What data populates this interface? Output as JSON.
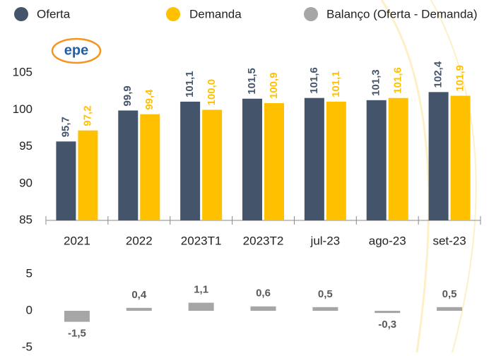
{
  "logo": "epe",
  "chart_data": [
    {
      "type": "bar",
      "categories": [
        "2021",
        "2022",
        "2023T1",
        "2023T2",
        "jul-23",
        "ago-23",
        "set-23"
      ],
      "series": [
        {
          "name": "Oferta",
          "color": "#44546a",
          "values": [
            95.7,
            99.9,
            101.1,
            101.5,
            101.6,
            101.3,
            102.4
          ],
          "value_labels": [
            "95,7",
            "99,9",
            "101,1",
            "101,5",
            "101,6",
            "101,3",
            "102,4"
          ]
        },
        {
          "name": "Demanda",
          "color": "#ffc000",
          "values": [
            97.2,
            99.4,
            100.0,
            100.9,
            101.1,
            101.6,
            101.9
          ],
          "value_labels": [
            "97,2",
            "99,4",
            "100,0",
            "100,9",
            "101,1",
            "101,6",
            "101,9"
          ]
        }
      ],
      "ylim": [
        85,
        110
      ],
      "yticks": [
        85,
        90,
        95,
        100,
        105
      ]
    },
    {
      "type": "bar",
      "series": [
        {
          "name": "Balanço (Oferta - Demanda)",
          "color": "#a6a6a6",
          "values": [
            -1.5,
            0.4,
            1.1,
            0.6,
            0.5,
            -0.3,
            0.5
          ],
          "value_labels": [
            "-1,5",
            "0,4",
            "1,1",
            "0,6",
            "0,5",
            "-0,3",
            "0,5"
          ]
        }
      ],
      "ylim": [
        -5,
        5
      ],
      "yticks": [
        -5,
        0,
        5
      ]
    }
  ]
}
